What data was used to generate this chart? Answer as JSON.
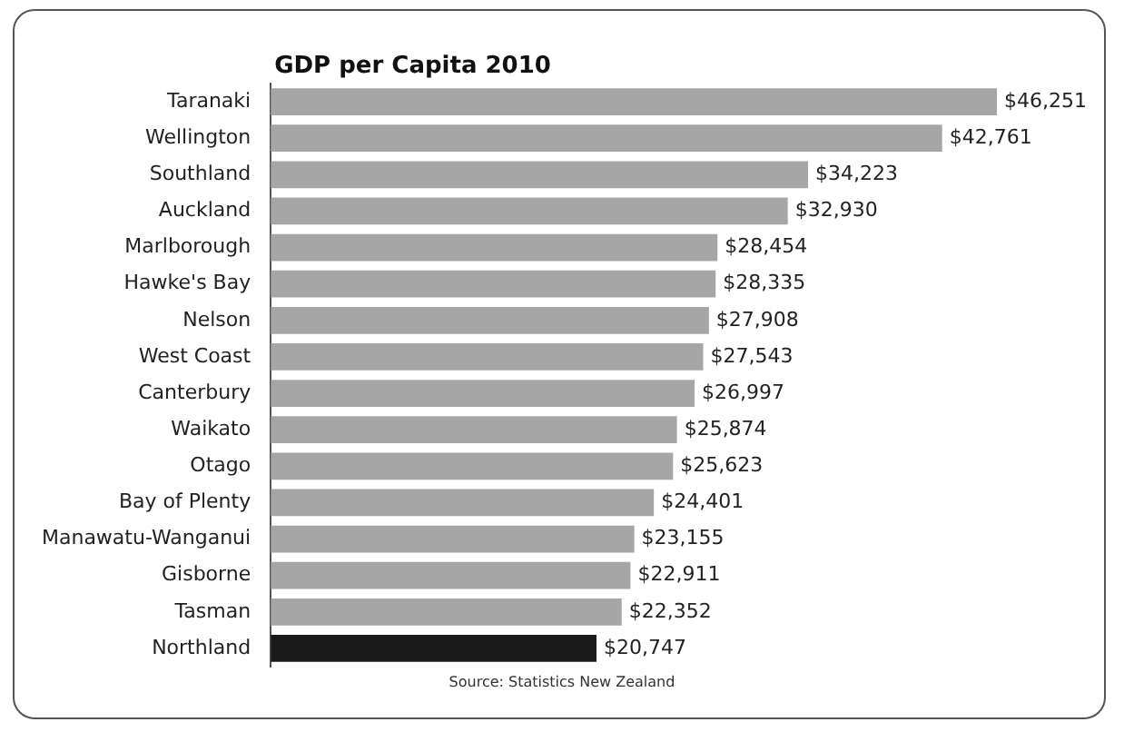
{
  "chart_data": {
    "type": "bar",
    "orientation": "horizontal",
    "tick_labels": "y",
    "title": "GDP per Capita 2010",
    "categories": [
      "Taranaki",
      "Wellington",
      "Southland",
      "Auckland",
      "Marlborough",
      "Hawke's Bay",
      "Nelson",
      "West Coast",
      "Canterbury",
      "Waikato",
      "Otago",
      "Bay of Plenty",
      "Manawatu-Wanganui",
      "Gisborne",
      "Tasman",
      "Northland"
    ],
    "values": [
      46251,
      42761,
      34223,
      32930,
      28454,
      28335,
      27908,
      27543,
      26997,
      25874,
      25623,
      24401,
      23155,
      22911,
      22352,
      20747
    ],
    "value_labels": [
      "$46,251",
      "$42,761",
      "$34,223",
      "$32,930",
      "$28,454",
      "$28,335",
      "$27,908",
      "$27,543",
      "$26,997",
      "$25,874",
      "$25,623",
      "$24,401",
      "$23,155",
      "$22,911",
      "$22,352",
      "$20,747"
    ],
    "colors": [
      "#a6a6a6",
      "#a6a6a6",
      "#a6a6a6",
      "#a6a6a6",
      "#a6a6a6",
      "#a6a6a6",
      "#a6a6a6",
      "#a6a6a6",
      "#a6a6a6",
      "#a6a6a6",
      "#a6a6a6",
      "#a6a6a6",
      "#a6a6a6",
      "#a6a6a6",
      "#a6a6a6",
      "#1a1a1a"
    ],
    "legend": false,
    "annotations": [
      "Source: Statistics New Zealand"
    ]
  }
}
